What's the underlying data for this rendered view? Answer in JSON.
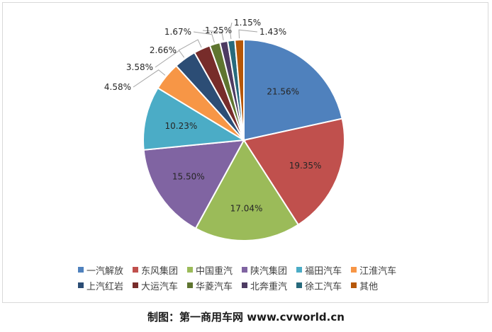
{
  "chart_data": {
    "type": "pie",
    "slices": [
      {
        "name": "一汽解放",
        "value": 21.56,
        "label": "21.56%",
        "color": "#4f81bd"
      },
      {
        "name": "东风集团",
        "value": 19.35,
        "label": "19.35%",
        "color": "#c0504d"
      },
      {
        "name": "中国重汽",
        "value": 17.04,
        "label": "17.04%",
        "color": "#9bbb59"
      },
      {
        "name": "陕汽集团",
        "value": 15.5,
        "label": "15.50%",
        "color": "#8064a2"
      },
      {
        "name": "福田汽车",
        "value": 10.23,
        "label": "10.23%",
        "color": "#4bacc6"
      },
      {
        "name": "江淮汽车",
        "value": 4.58,
        "label": "4.58%",
        "color": "#f79646"
      },
      {
        "name": "上汽红岩",
        "value": 3.58,
        "label": "3.58%",
        "color": "#2c4d75"
      },
      {
        "name": "大运汽车",
        "value": 2.66,
        "label": "2.66%",
        "color": "#772c2a"
      },
      {
        "name": "华菱汽车",
        "value": 1.67,
        "label": "1.67%",
        "color": "#5f7530"
      },
      {
        "name": "北奔重汽",
        "value": 1.25,
        "label": "1.25%",
        "color": "#4d3b62"
      },
      {
        "name": "徐工汽车",
        "value": 1.15,
        "label": "1.15%",
        "color": "#276a7c"
      },
      {
        "name": "其他",
        "value": 1.43,
        "label": "1.43%",
        "color": "#b65708"
      }
    ],
    "legend": "bottom",
    "legend_rows": [
      [
        "一汽解放",
        "东风集团",
        "中国重汽",
        "陕汽集团",
        "福田汽车",
        "江淮汽车"
      ],
      [
        "上汽红岩",
        "大运汽车",
        "华菱汽车",
        "北奔重汽",
        "徐工汽车",
        "其他"
      ]
    ]
  },
  "credit": "制图：第一商用车网 www.cvworld.cn"
}
